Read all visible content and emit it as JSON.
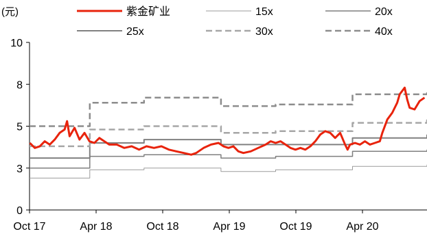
{
  "chart_data": {
    "type": "line",
    "title": "",
    "xlabel": "",
    "ylabel": "(元)",
    "ylim": [
      0,
      10
    ],
    "y_ticks": [
      "0",
      "3",
      "5",
      "8",
      "10"
    ],
    "x_ticks": [
      "Oct 17",
      "Apr 18",
      "Oct 18",
      "Apr 19",
      "Oct 19",
      "Apr 20"
    ],
    "grid": false,
    "legend_position": "top",
    "legend_order": [
      "紫金矿业",
      "15x",
      "20x",
      "25x",
      "30x",
      "40x"
    ],
    "series": [
      {
        "name": "紫金矿业",
        "color": "#e8230c",
        "style": "solid-thick",
        "points": [
          [
            "2017-10-02",
            4.0
          ],
          [
            "2017-10-16",
            3.7
          ],
          [
            "2017-10-30",
            3.8
          ],
          [
            "2017-11-13",
            4.1
          ],
          [
            "2017-11-27",
            3.9
          ],
          [
            "2017-12-11",
            4.2
          ],
          [
            "2017-12-25",
            4.6
          ],
          [
            "2018-01-08",
            4.8
          ],
          [
            "2018-01-15",
            5.3
          ],
          [
            "2018-01-22",
            4.4
          ],
          [
            "2018-02-05",
            4.9
          ],
          [
            "2018-02-19",
            4.2
          ],
          [
            "2018-03-05",
            4.6
          ],
          [
            "2018-03-19",
            4.1
          ],
          [
            "2018-04-02",
            4.0
          ],
          [
            "2018-04-16",
            4.3
          ],
          [
            "2018-04-30",
            4.1
          ],
          [
            "2018-05-14",
            3.9
          ],
          [
            "2018-06-04",
            3.9
          ],
          [
            "2018-06-25",
            3.7
          ],
          [
            "2018-07-16",
            3.8
          ],
          [
            "2018-08-06",
            3.6
          ],
          [
            "2018-08-27",
            3.8
          ],
          [
            "2018-09-17",
            3.7
          ],
          [
            "2018-10-08",
            3.8
          ],
          [
            "2018-10-29",
            3.6
          ],
          [
            "2018-11-19",
            3.5
          ],
          [
            "2018-12-10",
            3.4
          ],
          [
            "2018-12-31",
            3.3
          ],
          [
            "2019-01-14",
            3.4
          ],
          [
            "2019-02-04",
            3.7
          ],
          [
            "2019-02-25",
            3.9
          ],
          [
            "2019-03-18",
            4.0
          ],
          [
            "2019-04-01",
            3.8
          ],
          [
            "2019-04-15",
            3.7
          ],
          [
            "2019-04-29",
            3.8
          ],
          [
            "2019-05-13",
            3.5
          ],
          [
            "2019-05-27",
            3.4
          ],
          [
            "2019-06-17",
            3.5
          ],
          [
            "2019-07-08",
            3.7
          ],
          [
            "2019-07-29",
            3.9
          ],
          [
            "2019-08-12",
            4.1
          ],
          [
            "2019-08-26",
            4.0
          ],
          [
            "2019-09-09",
            4.1
          ],
          [
            "2019-09-23",
            3.9
          ],
          [
            "2019-10-07",
            3.7
          ],
          [
            "2019-10-21",
            3.6
          ],
          [
            "2019-11-04",
            3.7
          ],
          [
            "2019-11-18",
            3.6
          ],
          [
            "2019-12-02",
            3.8
          ],
          [
            "2019-12-16",
            4.1
          ],
          [
            "2019-12-30",
            4.5
          ],
          [
            "2020-01-13",
            4.7
          ],
          [
            "2020-01-27",
            4.6
          ],
          [
            "2020-02-10",
            4.3
          ],
          [
            "2020-02-24",
            4.6
          ],
          [
            "2020-03-09",
            3.9
          ],
          [
            "2020-03-16",
            3.6
          ],
          [
            "2020-03-23",
            3.9
          ],
          [
            "2020-04-06",
            4.0
          ],
          [
            "2020-04-20",
            3.9
          ],
          [
            "2020-05-04",
            4.1
          ],
          [
            "2020-05-18",
            3.9
          ],
          [
            "2020-06-01",
            4.0
          ],
          [
            "2020-06-15",
            4.1
          ],
          [
            "2020-06-22",
            4.6
          ],
          [
            "2020-07-06",
            5.4
          ],
          [
            "2020-07-20",
            5.8
          ],
          [
            "2020-08-03",
            6.4
          ],
          [
            "2020-08-10",
            6.9
          ],
          [
            "2020-08-24",
            7.3
          ],
          [
            "2020-08-31",
            6.6
          ],
          [
            "2020-09-07",
            6.1
          ],
          [
            "2020-09-21",
            6.0
          ],
          [
            "2020-10-05",
            6.5
          ],
          [
            "2020-10-19",
            6.7
          ]
        ]
      },
      {
        "name": "15x",
        "color": "#9b9b9b",
        "style": "solid-thin",
        "steps": [
          [
            "2017-10-01",
            1.9
          ],
          [
            "2018-03-20",
            2.4
          ],
          [
            "2018-08-20",
            2.5
          ],
          [
            "2019-03-25",
            2.3
          ],
          [
            "2019-08-26",
            2.4
          ],
          [
            "2020-03-30",
            2.6
          ],
          [
            "2020-10-26",
            2.7
          ]
        ]
      },
      {
        "name": "20x",
        "color": "#7f7f7f",
        "style": "solid-medium",
        "steps": [
          [
            "2017-10-01",
            2.5
          ],
          [
            "2018-03-20",
            3.2
          ],
          [
            "2018-08-20",
            3.3
          ],
          [
            "2019-03-25",
            3.1
          ],
          [
            "2019-08-26",
            3.2
          ],
          [
            "2020-03-30",
            3.5
          ],
          [
            "2020-10-26",
            3.6
          ]
        ]
      },
      {
        "name": "25x",
        "color": "#808080",
        "style": "solid-thick",
        "steps": [
          [
            "2017-10-01",
            3.1
          ],
          [
            "2018-03-20",
            4.0
          ],
          [
            "2018-08-20",
            4.2
          ],
          [
            "2019-03-25",
            3.9
          ],
          [
            "2019-08-26",
            3.9
          ],
          [
            "2020-03-30",
            4.3
          ],
          [
            "2020-10-26",
            4.5
          ]
        ]
      },
      {
        "name": "30x",
        "color": "#a6a6a6",
        "style": "dashed-thick",
        "steps": [
          [
            "2017-10-01",
            3.8
          ],
          [
            "2018-03-20",
            4.8
          ],
          [
            "2018-08-20",
            5.0
          ],
          [
            "2019-03-25",
            4.6
          ],
          [
            "2019-08-26",
            4.7
          ],
          [
            "2020-03-30",
            5.2
          ],
          [
            "2020-10-26",
            5.4
          ]
        ]
      },
      {
        "name": "40x",
        "color": "#8c8c8c",
        "style": "dashed-thick",
        "steps": [
          [
            "2017-10-01",
            5.0
          ],
          [
            "2018-03-20",
            6.4
          ],
          [
            "2018-08-20",
            6.7
          ],
          [
            "2019-03-25",
            6.2
          ],
          [
            "2019-08-26",
            6.3
          ],
          [
            "2020-03-30",
            6.9
          ],
          [
            "2020-10-26",
            7.2
          ]
        ]
      }
    ],
    "x_range": [
      "2017-10-01",
      "2020-10-26"
    ]
  }
}
